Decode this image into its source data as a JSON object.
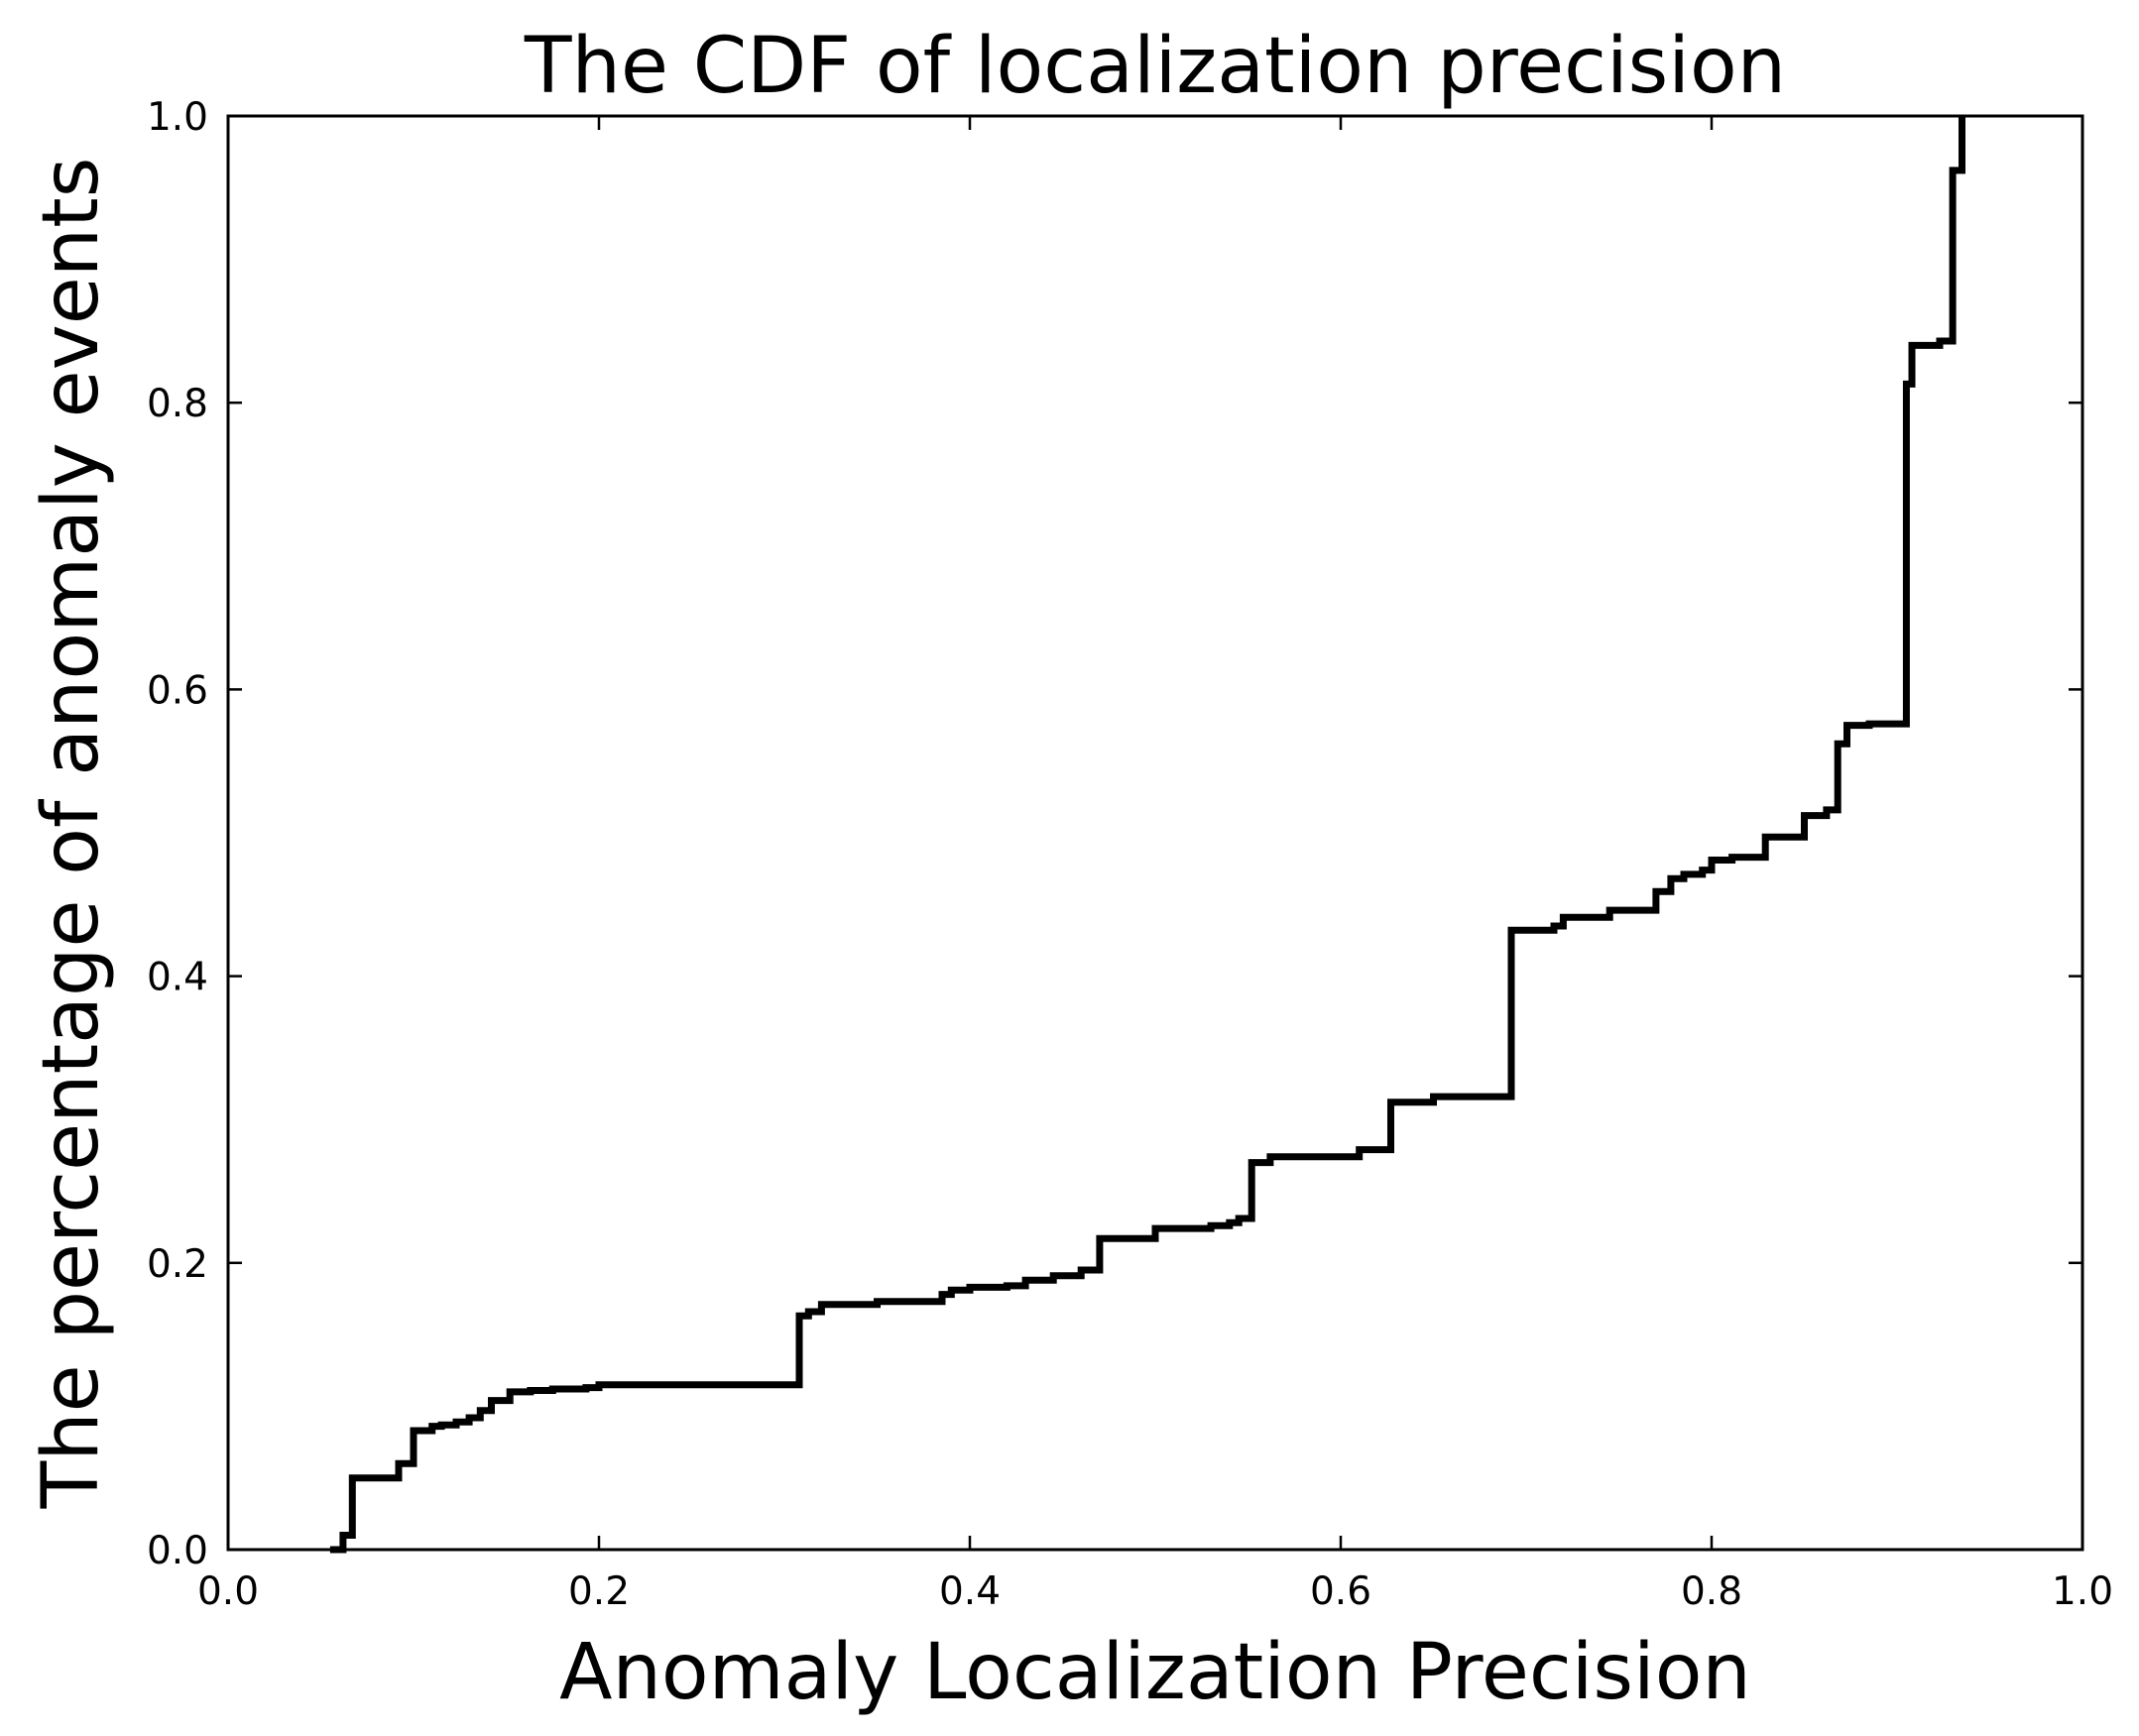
{
  "chart_data": {
    "type": "line",
    "title": "The CDF of localization precision",
    "xlabel": "Anomaly Localization Precision",
    "ylabel": "The percentage of anomaly events",
    "xlim": [
      0.0,
      1.0
    ],
    "ylim": [
      0.0,
      1.0
    ],
    "xticks": [
      "0.0",
      "0.2",
      "0.4",
      "0.6",
      "0.8",
      "1.0"
    ],
    "yticks": [
      "0.0",
      "0.2",
      "0.4",
      "0.6",
      "0.8",
      "1.0"
    ],
    "grid": false,
    "line_color": "#000000",
    "step": true,
    "series": [
      {
        "x": [
          0.055,
          0.062,
          0.067,
          0.092,
          0.1,
          0.11,
          0.115,
          0.123,
          0.13,
          0.136,
          0.142,
          0.152,
          0.163,
          0.175,
          0.193,
          0.2,
          0.308,
          0.313,
          0.32,
          0.35,
          0.385,
          0.39,
          0.4,
          0.42,
          0.43,
          0.445,
          0.46,
          0.47,
          0.5,
          0.53,
          0.54,
          0.545,
          0.552,
          0.562,
          0.61,
          0.627,
          0.65,
          0.692,
          0.715,
          0.72,
          0.745,
          0.77,
          0.778,
          0.785,
          0.795,
          0.8,
          0.811,
          0.829,
          0.85,
          0.862,
          0.868,
          0.873,
          0.885,
          0.905,
          0.908,
          0.923,
          0.93,
          0.935
        ],
        "y": [
          0.0,
          0.01,
          0.05,
          0.06,
          0.083,
          0.086,
          0.087,
          0.089,
          0.092,
          0.097,
          0.104,
          0.11,
          0.111,
          0.112,
          0.113,
          0.115,
          0.163,
          0.166,
          0.171,
          0.173,
          0.178,
          0.181,
          0.183,
          0.184,
          0.188,
          0.191,
          0.195,
          0.217,
          0.224,
          0.226,
          0.228,
          0.231,
          0.27,
          0.274,
          0.279,
          0.312,
          0.316,
          0.432,
          0.435,
          0.441,
          0.446,
          0.459,
          0.468,
          0.471,
          0.474,
          0.481,
          0.483,
          0.497,
          0.512,
          0.516,
          0.562,
          0.575,
          0.576,
          0.813,
          0.84,
          0.843,
          0.962,
          1.0
        ]
      }
    ]
  }
}
